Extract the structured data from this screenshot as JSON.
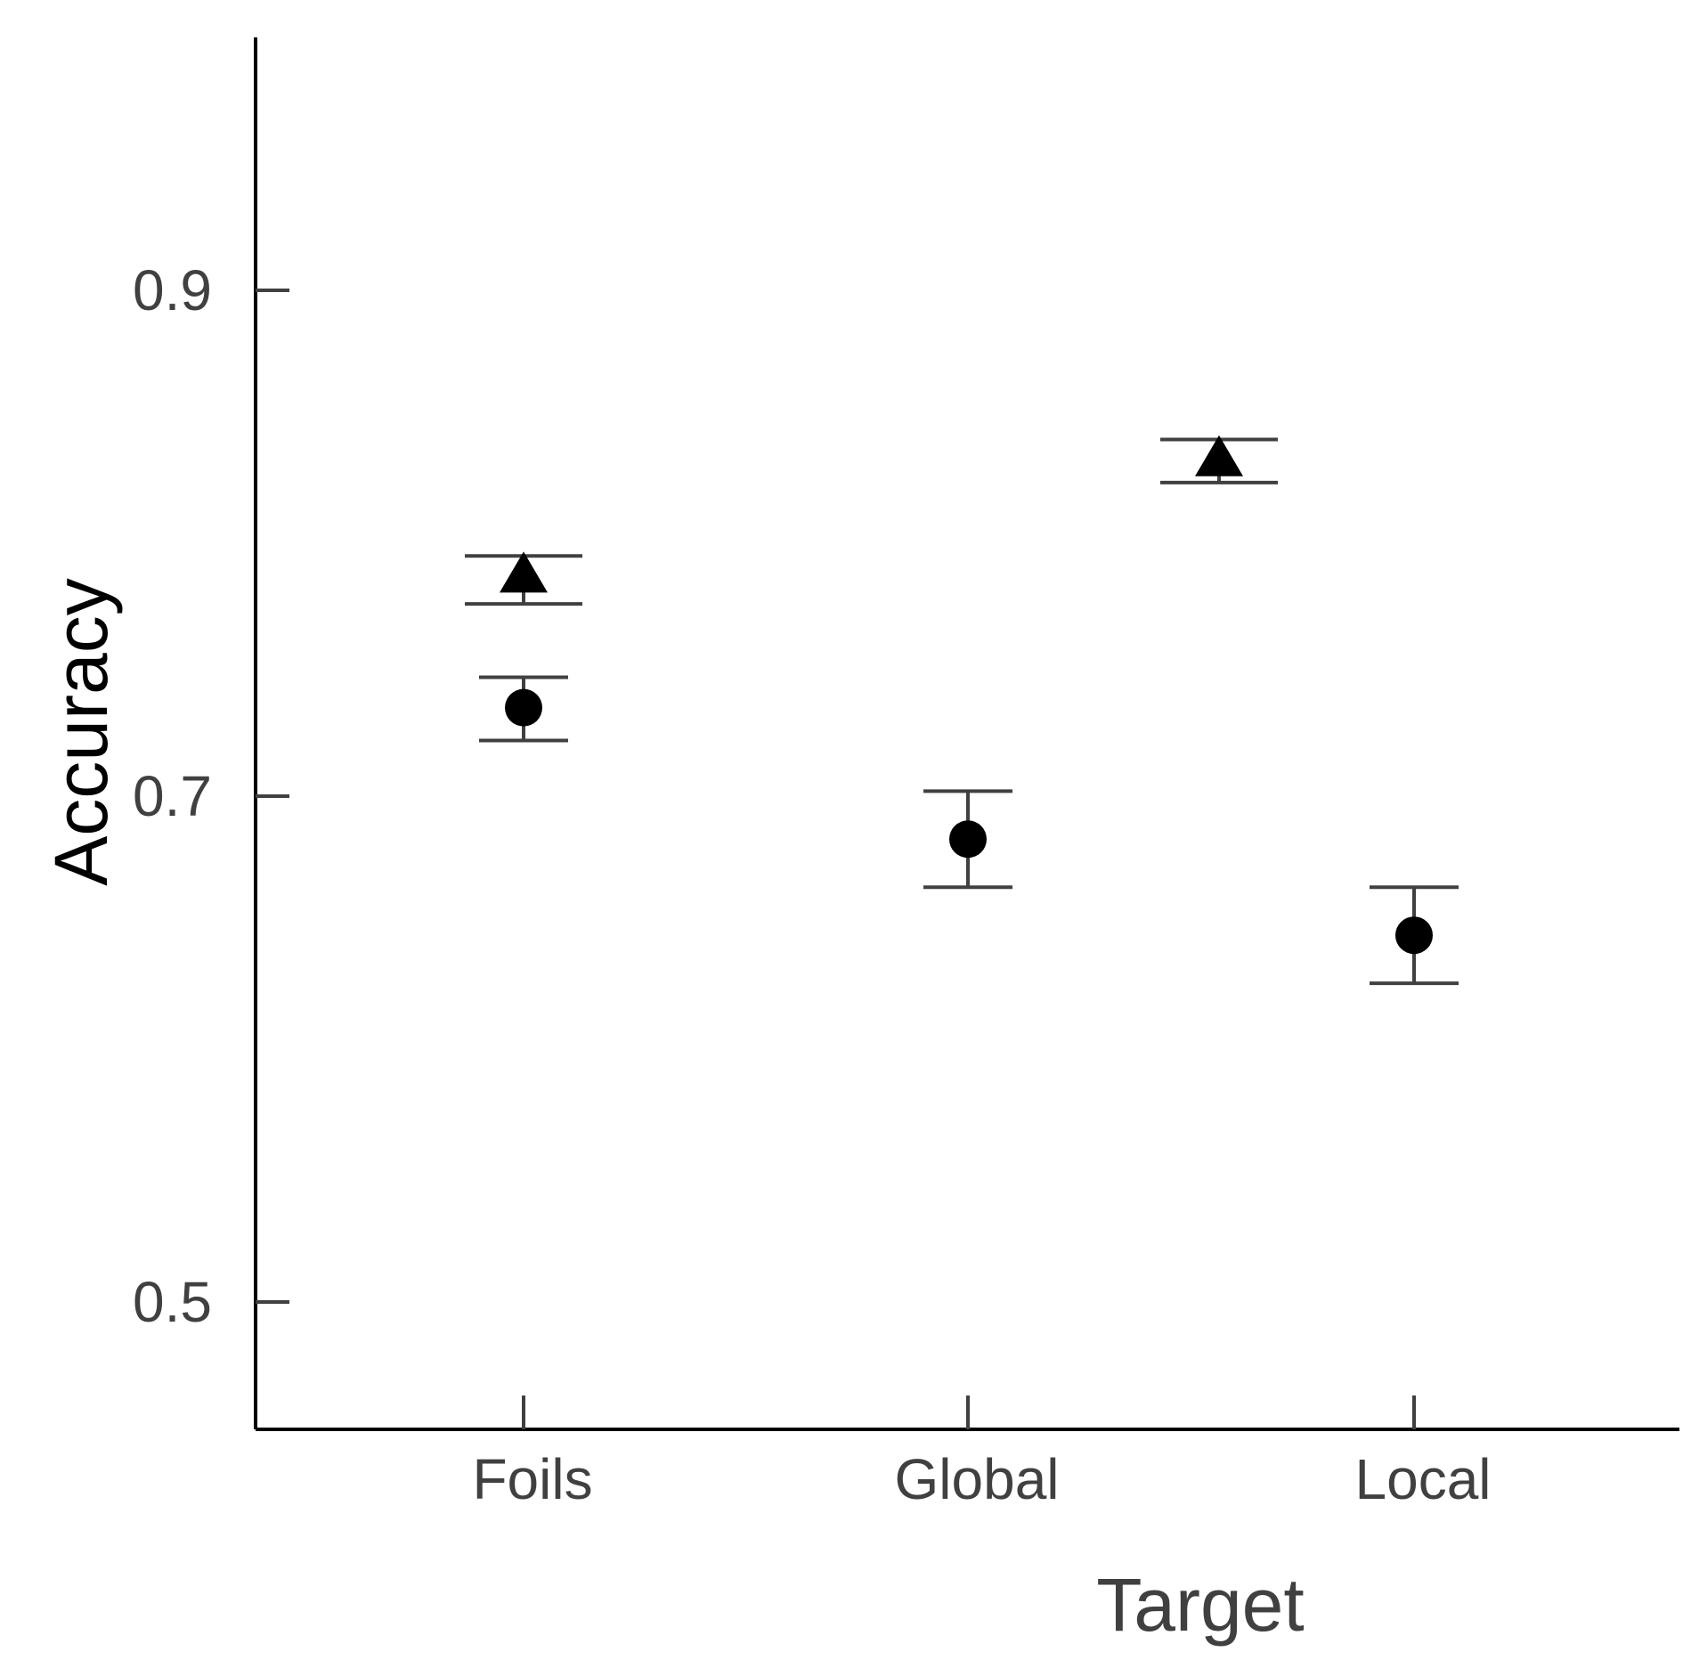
{
  "chart_data": {
    "type": "scatter",
    "title": "",
    "xlabel": "Target",
    "ylabel": "Accuracy",
    "categories": [
      "Foils",
      "Global",
      "Local"
    ],
    "yticks": [
      "0.5",
      "0.7",
      "0.9"
    ],
    "ylim": [
      0.45,
      1.0
    ],
    "grid": false,
    "color": "#000000",
    "series": [
      {
        "marker": "circle",
        "points": [
          {
            "category": "Foils",
            "y": 0.735,
            "ymin": 0.722,
            "ymax": 0.747
          },
          {
            "category": "Global",
            "y": 0.683,
            "ymin": 0.664,
            "ymax": 0.702
          },
          {
            "category": "Local",
            "y": 0.645,
            "ymin": 0.626,
            "ymax": 0.664
          }
        ]
      },
      {
        "marker": "triangle",
        "points": [
          {
            "category": "Foils",
            "y": 0.786,
            "ymin": 0.776,
            "ymax": 0.795
          },
          {
            "category": "Local",
            "y": 0.832,
            "ymin": 0.824,
            "ymax": 0.841
          }
        ]
      }
    ]
  }
}
